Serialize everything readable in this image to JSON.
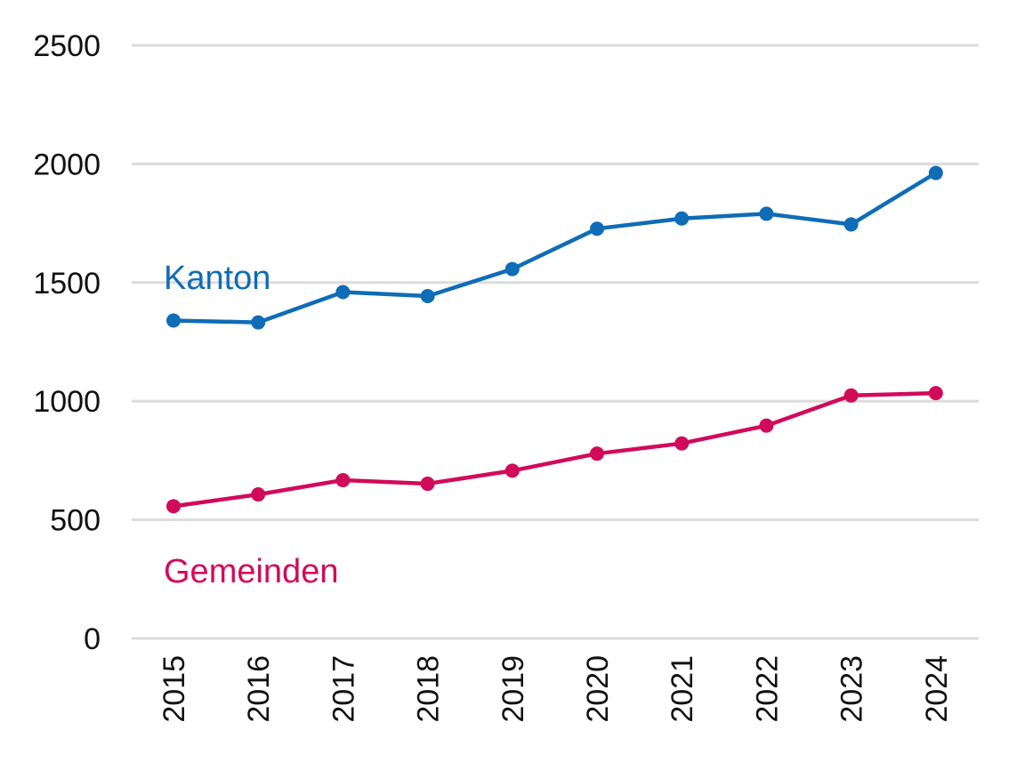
{
  "chart_data": {
    "type": "line",
    "title": "",
    "xlabel": "",
    "ylabel": "",
    "categories": [
      "2015",
      "2016",
      "2017",
      "2018",
      "2019",
      "2020",
      "2021",
      "2022",
      "2023",
      "2024"
    ],
    "ylim": [
      0,
      2500
    ],
    "yticks": [
      0,
      500,
      1000,
      1500,
      2000,
      2500
    ],
    "grid": true,
    "legend": "none",
    "series": [
      {
        "name": "Kanton",
        "color": "#0f6cb6",
        "values": [
          1340,
          1332,
          1460,
          1443,
          1557,
          1727,
          1770,
          1790,
          1745,
          1962
        ]
      },
      {
        "name": "Gemeinden",
        "color": "#d10a5a",
        "values": [
          557,
          607,
          667,
          652,
          707,
          779,
          822,
          897,
          1024,
          1034
        ]
      }
    ]
  }
}
